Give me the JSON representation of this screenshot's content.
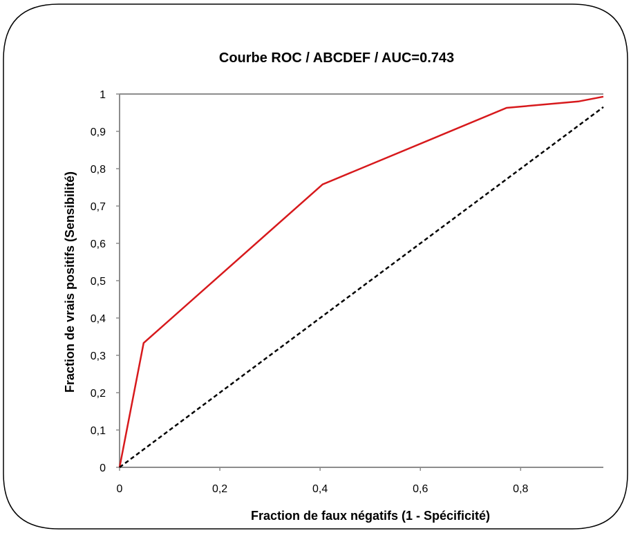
{
  "chart_data": {
    "type": "line",
    "title": "Courbe ROC / ABCDEF / AUC=0.743",
    "xlabel": "Fraction de faux négatifs (1 - Spécificité)",
    "ylabel": "Fraction de vrais positifs (Sensibilité)",
    "xlim": [
      0,
      0.965
    ],
    "ylim": [
      0,
      1
    ],
    "x_ticks": [
      "0",
      "0,2",
      "0,4",
      "0,6",
      "0,8"
    ],
    "x_tick_values": [
      0,
      0.2,
      0.4,
      0.6,
      0.8
    ],
    "y_ticks": [
      "0",
      "0,1",
      "0,2",
      "0,3",
      "0,4",
      "0,5",
      "0,6",
      "0,7",
      "0,8",
      "0,9",
      "1"
    ],
    "y_tick_values": [
      0,
      0.1,
      0.2,
      0.3,
      0.4,
      0.5,
      0.6,
      0.7,
      0.8,
      0.9,
      1
    ],
    "grid": false,
    "series": [
      {
        "color": "#d7191c",
        "style": "solid",
        "x": [
          0,
          0.048,
          0.405,
          0.772,
          0.915,
          0.965
        ],
        "y": [
          0,
          0.333,
          0.758,
          0.963,
          0.98,
          0.993
        ]
      },
      {
        "color": "#000000",
        "style": "dashed",
        "x": [
          0,
          0.965
        ],
        "y": [
          0,
          0.965
        ]
      }
    ]
  }
}
